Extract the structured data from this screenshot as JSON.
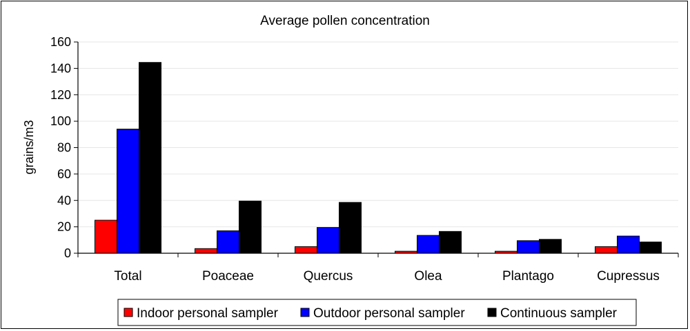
{
  "chart_data": {
    "type": "bar",
    "title": "Average pollen concentration",
    "xlabel": "",
    "ylabel": "grains/m3",
    "ylim": [
      0,
      160
    ],
    "yticks": [
      0,
      20,
      40,
      60,
      80,
      100,
      120,
      140,
      160
    ],
    "grid": true,
    "legend_position": "bottom",
    "categories": [
      "Total",
      "Poaceae",
      "Quercus",
      "Olea",
      "Plantago",
      "Cupressus"
    ],
    "series": [
      {
        "name": "Indoor personal sampler",
        "color": "#ff0000",
        "values": [
          25,
          3.5,
          5,
          1.5,
          1.5,
          5
        ]
      },
      {
        "name": "Outdoor personal sampler",
        "color": "#0000ff",
        "values": [
          94,
          17,
          19.5,
          13.5,
          9.5,
          13
        ]
      },
      {
        "name": "Continuous sampler",
        "color": "#000000",
        "values": [
          144.5,
          39.5,
          38.5,
          16.5,
          10.5,
          8.5
        ]
      }
    ]
  }
}
